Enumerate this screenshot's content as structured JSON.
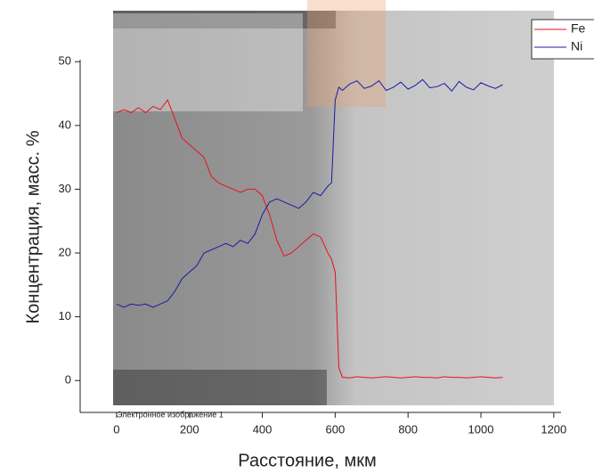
{
  "chart_data": {
    "type": "line",
    "x_label": "Расстояние, мкм",
    "y_label": "Концентрация, масс. %",
    "image_caption": "Электронное изображение 1",
    "xlim": [
      -100,
      1220
    ],
    "ylim": [
      -5,
      58
    ],
    "xticks": [
      0,
      200,
      400,
      600,
      800,
      1000,
      1200
    ],
    "yticks": [
      0,
      10,
      20,
      30,
      40,
      50
    ],
    "x": [
      0,
      20,
      40,
      60,
      80,
      100,
      120,
      140,
      160,
      180,
      200,
      220,
      240,
      260,
      280,
      300,
      320,
      340,
      360,
      380,
      400,
      420,
      440,
      460,
      480,
      500,
      520,
      540,
      560,
      580,
      590,
      600,
      610,
      620,
      640,
      660,
      680,
      700,
      720,
      740,
      760,
      780,
      800,
      820,
      840,
      860,
      880,
      900,
      920,
      940,
      960,
      980,
      1000,
      1020,
      1040,
      1060
    ],
    "series": [
      {
        "name": "Fe",
        "color": "#e8121a",
        "values": [
          42,
          42.5,
          42,
          42.8,
          42,
          43,
          42.5,
          44,
          41,
          38,
          37,
          36,
          35,
          32,
          31,
          30.5,
          30,
          29.5,
          30,
          30,
          29,
          26,
          22,
          19.5,
          20,
          21,
          22,
          23,
          22.5,
          20,
          19,
          17,
          2,
          0.5,
          0.4,
          0.6,
          0.5,
          0.4,
          0.5,
          0.6,
          0.5,
          0.4,
          0.5,
          0.6,
          0.5,
          0.5,
          0.4,
          0.6,
          0.5,
          0.5,
          0.4,
          0.5,
          0.6,
          0.5,
          0.4,
          0.5
        ]
      },
      {
        "name": "Ni",
        "color": "#1a1aa8",
        "values": [
          12,
          11.5,
          12,
          11.8,
          12,
          11.5,
          12,
          12.5,
          14,
          16,
          17,
          18,
          20,
          20.5,
          21,
          21.5,
          21,
          22,
          21.5,
          23,
          26,
          28,
          28.5,
          28,
          27.5,
          27,
          28,
          29.5,
          29,
          30.5,
          31,
          44,
          46,
          45.5,
          46.5,
          47,
          45.8,
          46.2,
          47,
          45.5,
          46,
          46.8,
          45.7,
          46.3,
          47.2,
          45.9,
          46.1,
          46.6,
          45.4,
          46.9,
          46,
          45.6,
          46.7,
          46.2,
          45.8,
          46.4
        ]
      }
    ]
  }
}
